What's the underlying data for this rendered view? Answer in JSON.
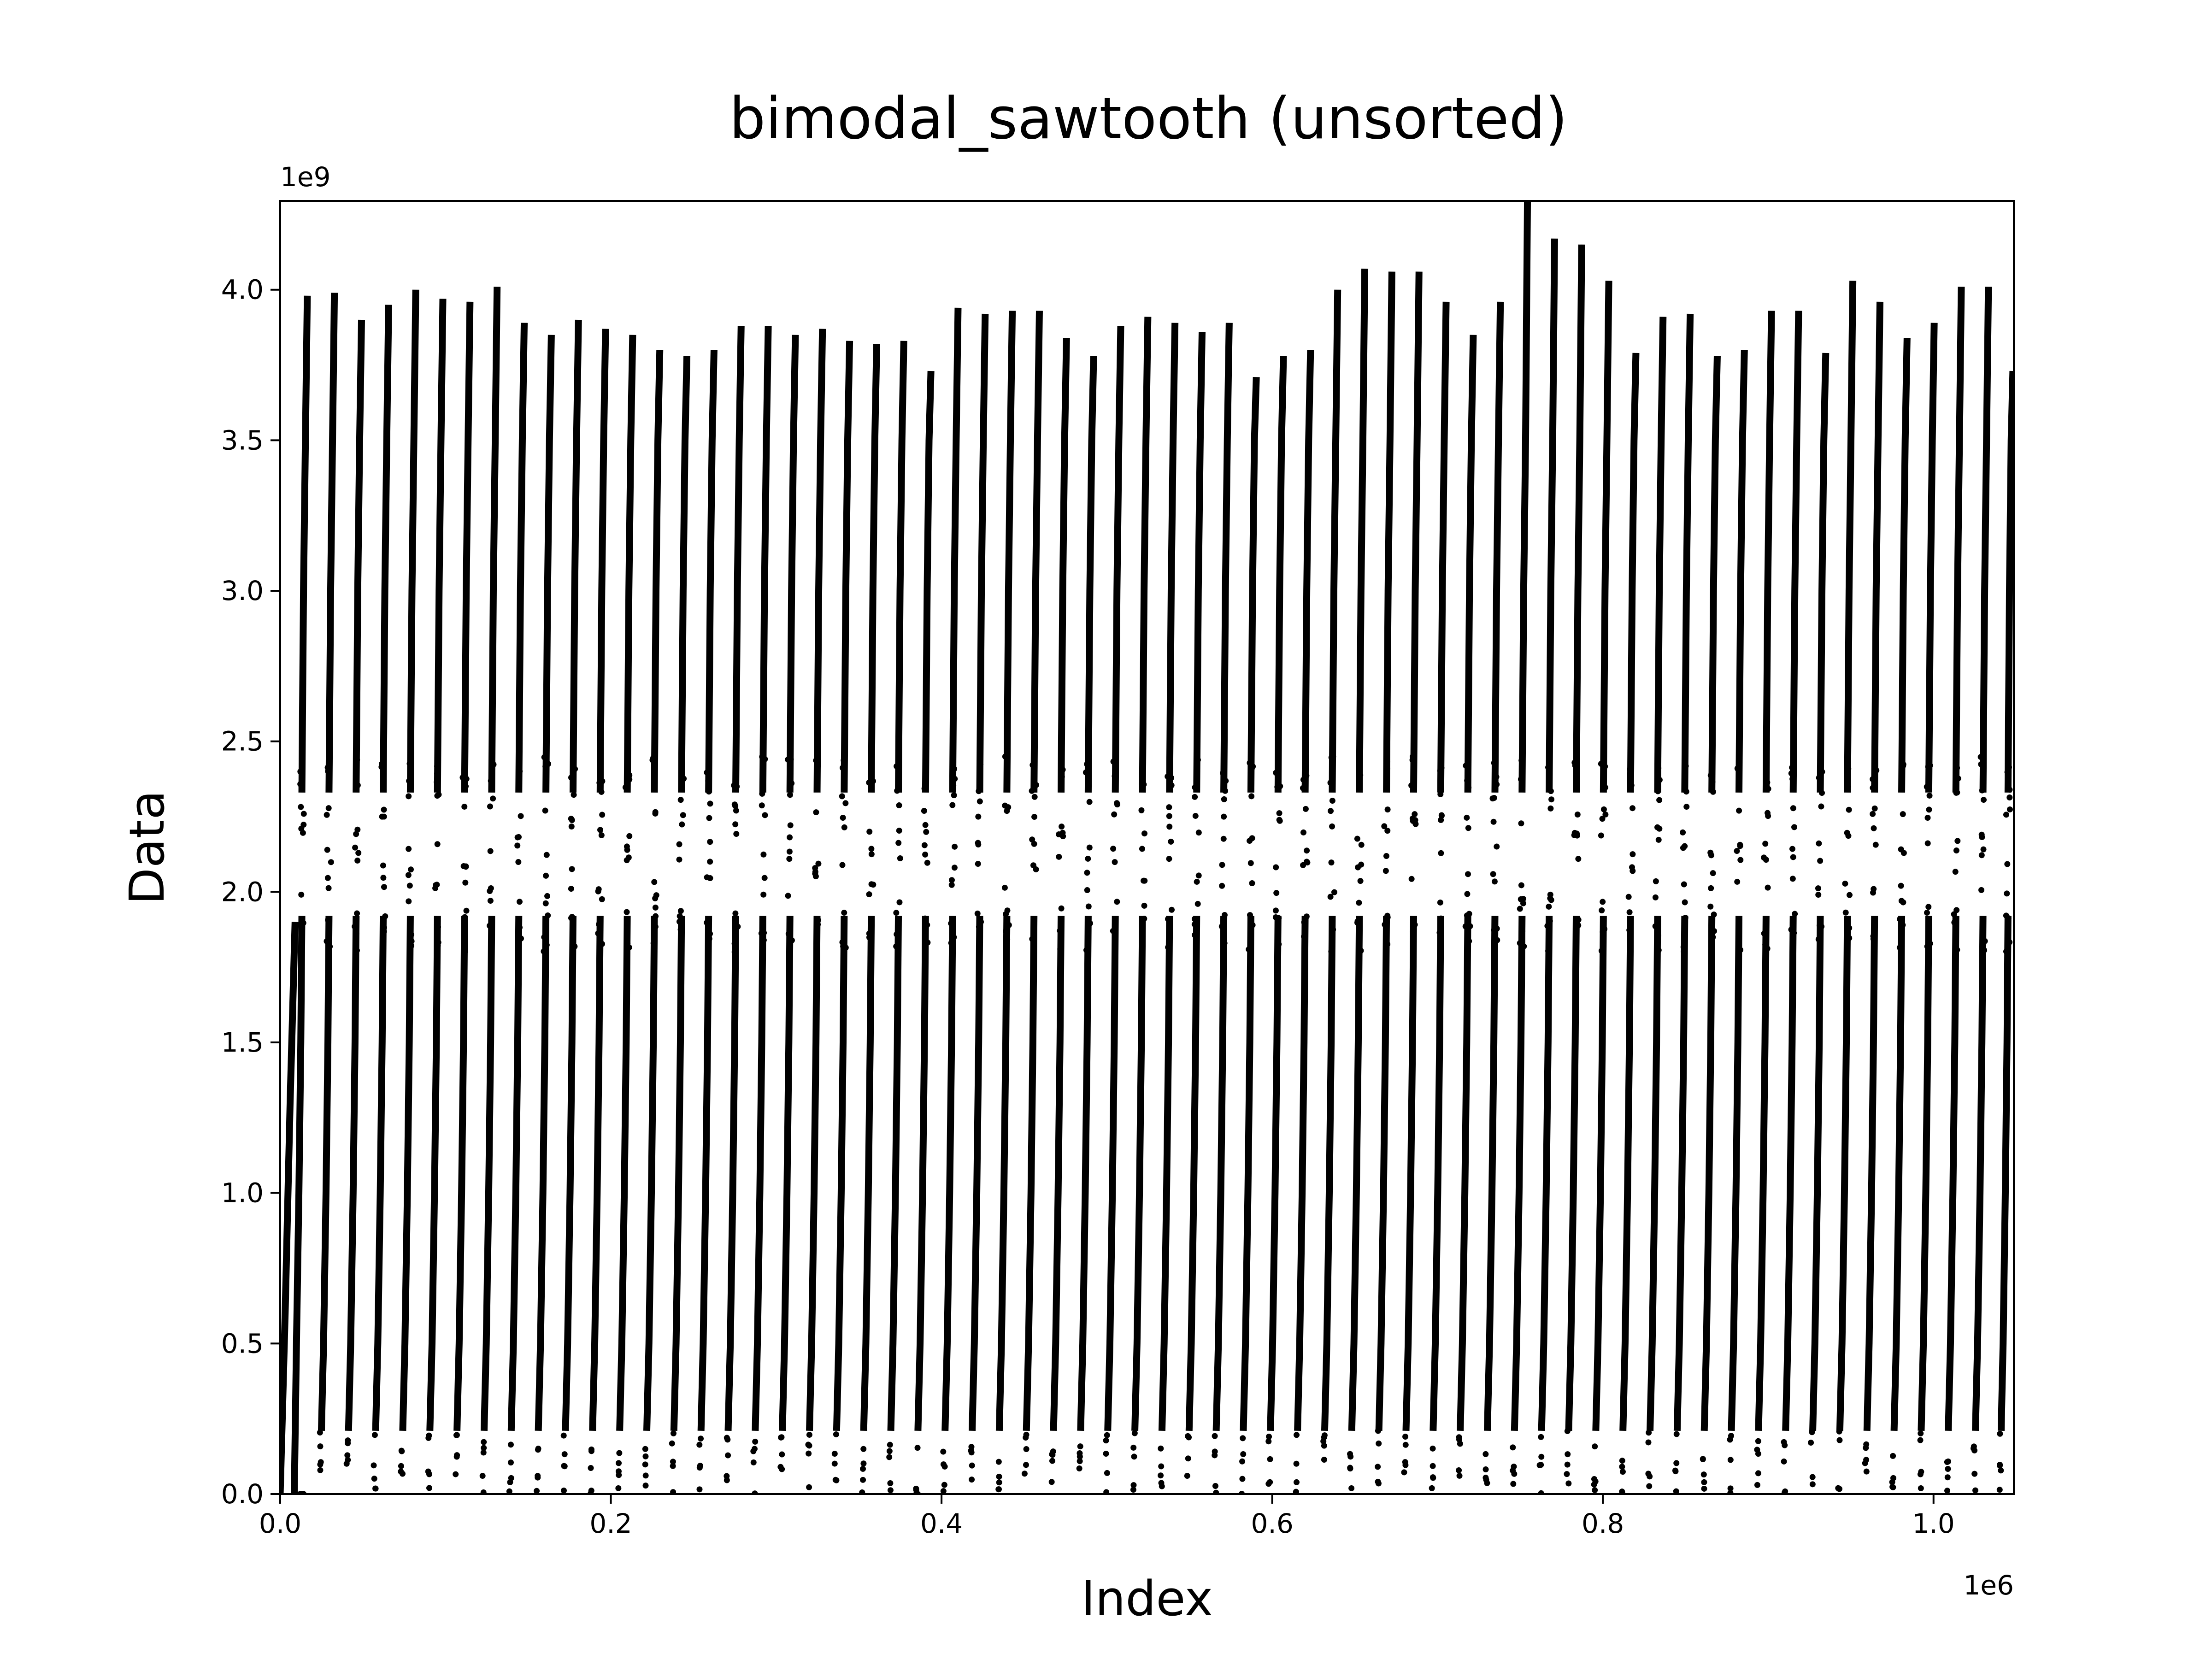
{
  "chart_data": {
    "type": "scatter",
    "title": "bimodal_sawtooth (unsorted)",
    "xlabel": "Index",
    "ylabel": "Data",
    "x_offset_label": "1e6",
    "y_offset_label": "1e9",
    "xlim": [
      0,
      1048576
    ],
    "ylim": [
      0,
      4294967295
    ],
    "x_ticks": [
      {
        "value": 0,
        "label": "0.0"
      },
      {
        "value": 200000,
        "label": "0.2"
      },
      {
        "value": 400000,
        "label": "0.4"
      },
      {
        "value": 600000,
        "label": "0.6"
      },
      {
        "value": 800000,
        "label": "0.8"
      },
      {
        "value": 1000000,
        "label": "1.0"
      }
    ],
    "y_ticks": [
      {
        "value": 0,
        "label": "0.0"
      },
      {
        "value": 500000000,
        "label": "0.5"
      },
      {
        "value": 1000000000,
        "label": "1.0"
      },
      {
        "value": 1500000000,
        "label": "1.5"
      },
      {
        "value": 2000000000,
        "label": "2.0"
      },
      {
        "value": 2500000000,
        "label": "2.5"
      },
      {
        "value": 3000000000,
        "label": "3.0"
      },
      {
        "value": 3500000000,
        "label": "3.5"
      },
      {
        "value": 4000000000,
        "label": "4.0"
      }
    ],
    "grid": false,
    "legend": "none",
    "marker_color": "#000000",
    "series": [
      {
        "tooth_peaks": [
          [
            16400,
            3980000000
          ],
          [
            32800,
            3990000000
          ],
          [
            49200,
            3900000000
          ],
          [
            65600,
            3950000000
          ],
          [
            82000,
            4000000000
          ],
          [
            98400,
            3970000000
          ],
          [
            114800,
            3960000000
          ],
          [
            131200,
            4010000000
          ],
          [
            147600,
            3890000000
          ],
          [
            164000,
            3850000000
          ],
          [
            180400,
            3900000000
          ],
          [
            196800,
            3870000000
          ],
          [
            213200,
            3850000000
          ],
          [
            229600,
            3800000000
          ],
          [
            246000,
            3780000000
          ],
          [
            262400,
            3800000000
          ],
          [
            278800,
            3880000000
          ],
          [
            295200,
            3880000000
          ],
          [
            311600,
            3850000000
          ],
          [
            328000,
            3870000000
          ],
          [
            344400,
            3830000000
          ],
          [
            360800,
            3820000000
          ],
          [
            377200,
            3830000000
          ],
          [
            393600,
            3730000000
          ],
          [
            410000,
            3940000000
          ],
          [
            426400,
            3920000000
          ],
          [
            442800,
            3930000000
          ],
          [
            459200,
            3930000000
          ],
          [
            475600,
            3840000000
          ],
          [
            492000,
            3780000000
          ],
          [
            508400,
            3880000000
          ],
          [
            524800,
            3910000000
          ],
          [
            541200,
            3890000000
          ],
          [
            557600,
            3860000000
          ],
          [
            574000,
            3890000000
          ],
          [
            590400,
            3710000000
          ],
          [
            606800,
            3780000000
          ],
          [
            623200,
            3800000000
          ],
          [
            639600,
            4000000000
          ],
          [
            656000,
            4070000000
          ],
          [
            672400,
            4060000000
          ],
          [
            688800,
            4060000000
          ],
          [
            705200,
            3960000000
          ],
          [
            721600,
            3850000000
          ],
          [
            738000,
            3960000000
          ],
          [
            754400,
            4300000000
          ],
          [
            770800,
            4170000000
          ],
          [
            787200,
            4150000000
          ],
          [
            803600,
            4030000000
          ],
          [
            820000,
            3790000000
          ],
          [
            836400,
            3910000000
          ],
          [
            852800,
            3920000000
          ],
          [
            869200,
            3780000000
          ],
          [
            885600,
            3800000000
          ],
          [
            902000,
            3930000000
          ],
          [
            918400,
            3930000000
          ],
          [
            934800,
            3790000000
          ],
          [
            951200,
            4030000000
          ],
          [
            967600,
            3960000000
          ],
          [
            984000,
            3840000000
          ],
          [
            1000400,
            3890000000
          ],
          [
            1016800,
            4010000000
          ],
          [
            1033200,
            4010000000
          ],
          [
            1048000,
            3730000000
          ]
        ]
      }
    ]
  }
}
